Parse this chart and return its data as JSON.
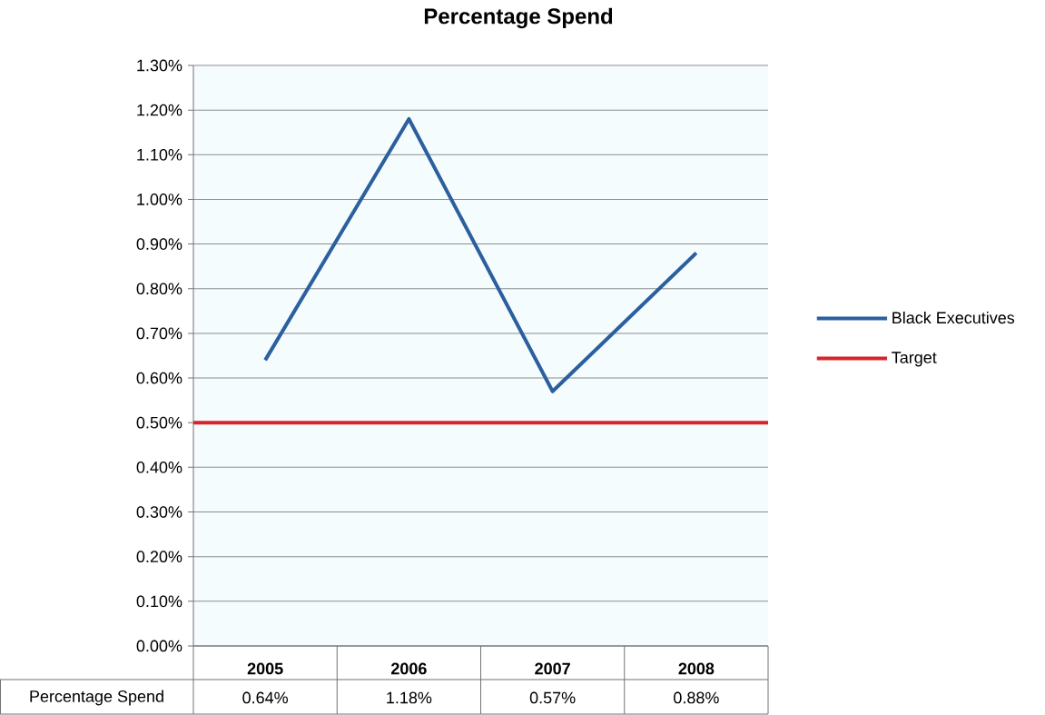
{
  "chart_data": {
    "type": "line",
    "title": "Percentage Spend",
    "categories": [
      "2005",
      "2006",
      "2007",
      "2008"
    ],
    "series": [
      {
        "name": "Black Executives",
        "color": "#2b5f9e",
        "values": [
          0.64,
          1.18,
          0.57,
          0.88
        ],
        "value_labels": [
          "0.64%",
          "1.18%",
          "0.57%",
          "0.88%"
        ]
      }
    ],
    "ylim": [
      0,
      1.3
    ],
    "yticks": [
      {
        "value": 0,
        "label": "0.00%"
      },
      {
        "value": 0.1,
        "label": "0.10%"
      },
      {
        "value": 0.2,
        "label": "0.20%"
      },
      {
        "value": 0.3,
        "label": "0.30%"
      },
      {
        "value": 0.4,
        "label": "0.40%"
      },
      {
        "value": 0.5,
        "label": "0.50%"
      },
      {
        "value": 0.6,
        "label": "0.60%"
      },
      {
        "value": 0.7,
        "label": "0.70%"
      },
      {
        "value": 0.8,
        "label": "0.80%"
      },
      {
        "value": 0.9,
        "label": "0.90%"
      },
      {
        "value": 1.0,
        "label": "1.00%"
      },
      {
        "value": 1.1,
        "label": "1.10%"
      },
      {
        "value": 1.2,
        "label": "1.20%"
      },
      {
        "value": 1.3,
        "label": "1.30%"
      }
    ],
    "grid": "y",
    "legend": "right",
    "ref_lines": [
      {
        "axis": "y",
        "value": 0.5,
        "label": "Target",
        "color": "#d7262b"
      }
    ],
    "annotations": [
      "Percentage Spend"
    ]
  }
}
